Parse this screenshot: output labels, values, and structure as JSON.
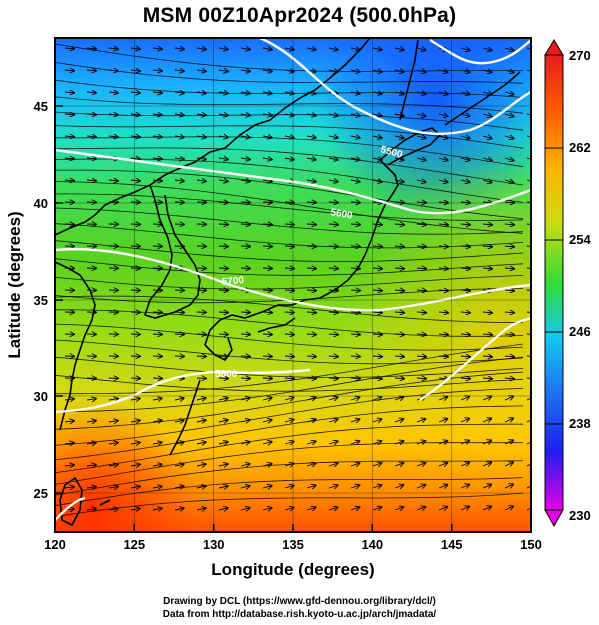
{
  "title": "MSM 00Z10Apr2024 (500.0hPa)",
  "axes": {
    "xlabel": "Longitude (degrees)",
    "ylabel": "Latitude  (degrees)",
    "x_ticks": [
      "120",
      "125",
      "130",
      "135",
      "140",
      "145",
      "150"
    ],
    "y_ticks": [
      "25",
      "30",
      "35",
      "40",
      "45"
    ]
  },
  "colorbar": {
    "ticks": [
      "270",
      "262",
      "254",
      "246",
      "238",
      "230"
    ],
    "range": [
      230,
      270
    ],
    "colors": [
      "#e600e6",
      "#1e1ef0",
      "#14c8f0",
      "#32dc32",
      "#aadc14",
      "#ffb400",
      "#ff5a00",
      "#e61e1e"
    ]
  },
  "contours": {
    "labels": [
      "5500",
      "5600",
      "5700",
      "5800"
    ]
  },
  "credits": {
    "line1": "Drawing by DCL (https://www.gfd-dennou.org/library/dcl/)",
    "line2": "Data from http://database.rish.kyoto-u.ac.jp/arch/jmadata/"
  },
  "chart_data": {
    "type": "map",
    "variable": "temperature (K) with geopotential height contours and wind streamlines",
    "level": "500.0hPa",
    "xlim": [
      120,
      150
    ],
    "ylim": [
      22.5,
      48
    ],
    "colorbar_range": [
      230,
      270
    ],
    "contour_values": [
      5500,
      5600,
      5700,
      5800
    ]
  }
}
